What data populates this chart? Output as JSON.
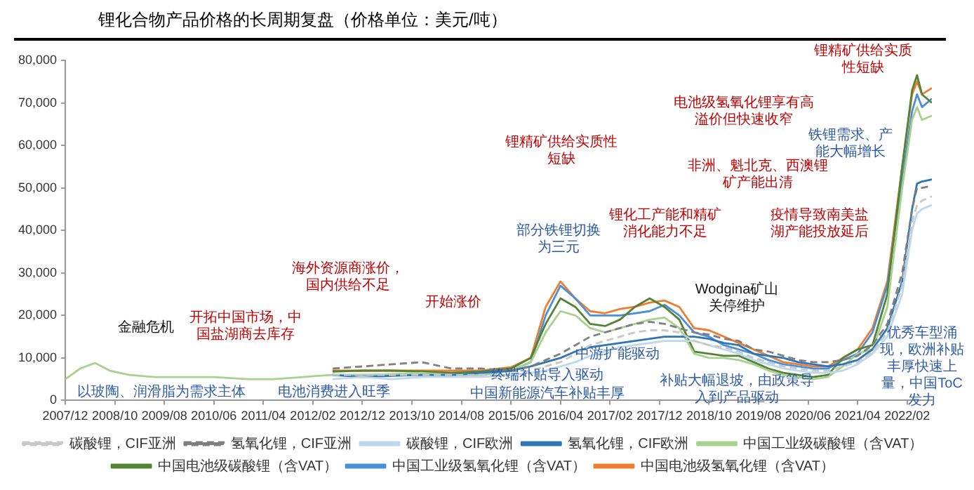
{
  "chart_data": {
    "type": "line",
    "title": "锂化合物产品价格的长周期复盘（价格单位：美元/吨）",
    "x": [
      "2007-12",
      "2008-03",
      "2008-06",
      "2008-09",
      "2009-01",
      "2009-06",
      "2010-01",
      "2010-06",
      "2011-01",
      "2011-06",
      "2011-12",
      "2012-03",
      "2012-06",
      "2012-12",
      "2013-06",
      "2013-12",
      "2014-06",
      "2014-12",
      "2015-06",
      "2015-10",
      "2016-01",
      "2016-04",
      "2016-07",
      "2016-10",
      "2017-01",
      "2017-04",
      "2017-07",
      "2017-10",
      "2018-01",
      "2018-04",
      "2018-07",
      "2018-10",
      "2019-01",
      "2019-04",
      "2019-07",
      "2019-10",
      "2020-01",
      "2020-04",
      "2020-07",
      "2020-10",
      "2021-01",
      "2021-04",
      "2021-07",
      "2021-10",
      "2022-01",
      "2022-03",
      "2022-04",
      "2022-05",
      "2022-07"
    ],
    "xlim": [
      "2007-12",
      "2022-07"
    ],
    "xticks": [
      {
        "value": "2007-12",
        "label": "2007/12"
      },
      {
        "value": "2008-10",
        "label": "2008/10"
      },
      {
        "value": "2009-08",
        "label": "2009/08"
      },
      {
        "value": "2010-06",
        "label": "2010/06"
      },
      {
        "value": "2011-04",
        "label": "2011/04"
      },
      {
        "value": "2012-02",
        "label": "2012/02"
      },
      {
        "value": "2012-12",
        "label": "2012/12"
      },
      {
        "value": "2013-10",
        "label": "2013/10"
      },
      {
        "value": "2014-08",
        "label": "2014/08"
      },
      {
        "value": "2015-06",
        "label": "2015/06"
      },
      {
        "value": "2016-04",
        "label": "2016/04"
      },
      {
        "value": "2017-02",
        "label": "2017/02"
      },
      {
        "value": "2017-12",
        "label": "2017/12"
      },
      {
        "value": "2018-10",
        "label": "2018/10"
      },
      {
        "value": "2019-08",
        "label": "2019/08"
      },
      {
        "value": "2020-06",
        "label": "2020/06"
      },
      {
        "value": "2021-04",
        "label": "2021/04"
      },
      {
        "value": "2022-02",
        "label": "2022/02"
      }
    ],
    "ylim": [
      0,
      80000
    ],
    "yticks": [
      {
        "value": 0,
        "label": "0"
      },
      {
        "value": 10000,
        "label": "10,000"
      },
      {
        "value": 20000,
        "label": "20,000"
      },
      {
        "value": 30000,
        "label": "30,000"
      },
      {
        "value": 40000,
        "label": "40,000"
      },
      {
        "value": 50000,
        "label": "50,000"
      },
      {
        "value": 60000,
        "label": "60,000"
      },
      {
        "value": 70000,
        "label": "70,000"
      },
      {
        "value": 80000,
        "label": "80,000"
      }
    ],
    "grid": false,
    "legend": "bottom",
    "marker": "none",
    "series": [
      {
        "name": "碳酸锂，CIF亚洲",
        "color": "#c8c8c8",
        "line_style": "dashed",
        "values": [
          null,
          null,
          null,
          null,
          null,
          null,
          null,
          null,
          null,
          null,
          null,
          null,
          6000,
          6000,
          6000,
          6000,
          6000,
          6000,
          6000,
          7000,
          8000,
          9000,
          11000,
          13000,
          14000,
          15000,
          16000,
          16500,
          16500,
          16000,
          14000,
          13000,
          12500,
          11500,
          10000,
          9000,
          8000,
          7500,
          7000,
          7000,
          8000,
          9000,
          11500,
          16000,
          27000,
          42000,
          46000,
          47000,
          48000
        ]
      },
      {
        "name": "氢氧化锂，CIF亚洲",
        "color": "#7f7f7f",
        "line_style": "dashed",
        "values": [
          null,
          null,
          null,
          null,
          null,
          null,
          null,
          null,
          null,
          null,
          null,
          null,
          7500,
          8000,
          8500,
          9000,
          7500,
          7500,
          7000,
          8000,
          9500,
          11000,
          13000,
          15000,
          16000,
          17000,
          18000,
          18500,
          18000,
          17000,
          16000,
          15500,
          14500,
          14000,
          12000,
          11500,
          10500,
          9500,
          9000,
          9000,
          9500,
          10500,
          13000,
          18000,
          30000,
          45000,
          50000,
          50000,
          50500
        ]
      },
      {
        "name": "碳酸锂，CIF欧洲",
        "color": "#bdd7ee",
        "values": [
          null,
          null,
          null,
          null,
          null,
          null,
          null,
          null,
          null,
          null,
          null,
          null,
          5000,
          5500,
          5000,
          5500,
          5500,
          5500,
          6000,
          6500,
          7000,
          8000,
          9000,
          10500,
          11500,
          12500,
          13000,
          13500,
          14000,
          14000,
          14000,
          13000,
          12000,
          11000,
          9500,
          8500,
          7500,
          7000,
          6500,
          6500,
          7000,
          8500,
          11000,
          15000,
          25000,
          40000,
          44000,
          45000,
          46000
        ]
      },
      {
        "name": "氢氧化锂，CIF欧洲",
        "color": "#2e75b6",
        "values": [
          null,
          null,
          null,
          null,
          null,
          null,
          null,
          null,
          null,
          null,
          null,
          null,
          6000,
          5500,
          5800,
          6000,
          6000,
          6500,
          7000,
          8000,
          9000,
          10000,
          11500,
          12500,
          13000,
          13500,
          14000,
          14500,
          15000,
          15000,
          15000,
          14500,
          13500,
          13000,
          11000,
          10500,
          10000,
          9000,
          8500,
          8000,
          8500,
          9500,
          12000,
          17000,
          28000,
          45000,
          51000,
          51500,
          52000
        ]
      },
      {
        "name": "中国工业级碳酸锂（含VAT）",
        "color": "#a9d18e",
        "values": [
          5000,
          7500,
          8800,
          7000,
          6000,
          5500,
          5500,
          5500,
          5000,
          5000,
          5500,
          5800,
          6000,
          6000,
          6200,
          6500,
          6000,
          6000,
          7000,
          9000,
          16000,
          21000,
          20000,
          17000,
          16000,
          17000,
          18000,
          19000,
          19500,
          17000,
          11000,
          10000,
          10000,
          9500,
          8500,
          7000,
          6000,
          5500,
          5000,
          5500,
          8000,
          11000,
          12000,
          22000,
          50000,
          66000,
          69000,
          66000,
          67000
        ]
      },
      {
        "name": "中国电池级碳酸锂（含VAT）",
        "color": "#548235",
        "values": [
          null,
          null,
          null,
          null,
          null,
          null,
          null,
          null,
          null,
          null,
          null,
          null,
          6800,
          7000,
          7000,
          6800,
          6500,
          6800,
          7500,
          10000,
          18000,
          24000,
          22000,
          18000,
          17500,
          19000,
          22000,
          24000,
          22000,
          19000,
          11500,
          11000,
          10500,
          10500,
          9000,
          7500,
          6500,
          6000,
          5500,
          6000,
          10000,
          12000,
          13000,
          25000,
          55000,
          73000,
          76500,
          72000,
          70000
        ]
      },
      {
        "name": "中国工业级氢氧化锂（含VAT）",
        "color": "#4a90d9",
        "values": [
          null,
          null,
          null,
          null,
          null,
          null,
          null,
          null,
          null,
          null,
          null,
          null,
          6000,
          6000,
          6000,
          6000,
          6000,
          6000,
          7000,
          9000,
          20000,
          27000,
          24000,
          20000,
          20000,
          20000,
          20500,
          21000,
          22500,
          20000,
          16000,
          15000,
          13000,
          12000,
          11000,
          9500,
          8500,
          8000,
          7500,
          7500,
          9500,
          11000,
          16000,
          27000,
          52000,
          68000,
          72000,
          69000,
          71000
        ]
      },
      {
        "name": "中国电池级氢氧化锂（含VAT）",
        "color": "#ed7d31",
        "values": [
          null,
          null,
          null,
          null,
          null,
          null,
          null,
          null,
          null,
          null,
          null,
          null,
          7000,
          7000,
          7000,
          7000,
          7000,
          7000,
          7800,
          10000,
          22000,
          28000,
          24000,
          21000,
          20500,
          21500,
          22000,
          23000,
          23500,
          22000,
          17000,
          16500,
          15000,
          13500,
          12000,
          10500,
          9000,
          8500,
          8000,
          8000,
          10000,
          12000,
          17000,
          28000,
          55000,
          72000,
          75000,
          72000,
          73500
        ]
      }
    ],
    "annotations": [
      "金融危机",
      "以玻陶、润滑脂为需求主体",
      "开拓中国市场，中国盐湖商去库存",
      "电池消费进入旺季",
      "海外资源商涨价，国内供给不足",
      "开始涨价",
      "锂精矿供给实质性短缺",
      "部分铁锂切换为三元",
      "锂化工产能和精矿消化能力不足",
      "电池级氢氧化锂享有高溢价但快速收窄",
      "非洲、魁北克、西澳锂矿产能出清",
      "铁锂需求、产能大幅增长",
      "疫情导致南美盐湖产能投放延后",
      "锂精矿供给实质性短缺",
      "终端补贴导入驱动",
      "中国新能源汽车补贴丰厚",
      "中游扩能驱动",
      "Wodgina矿山关停维护",
      "补贴大幅退坡，由政策导入到产品驱动",
      "优秀车型涌现，欧洲补贴丰厚快速上量，中国ToC发力"
    ]
  }
}
